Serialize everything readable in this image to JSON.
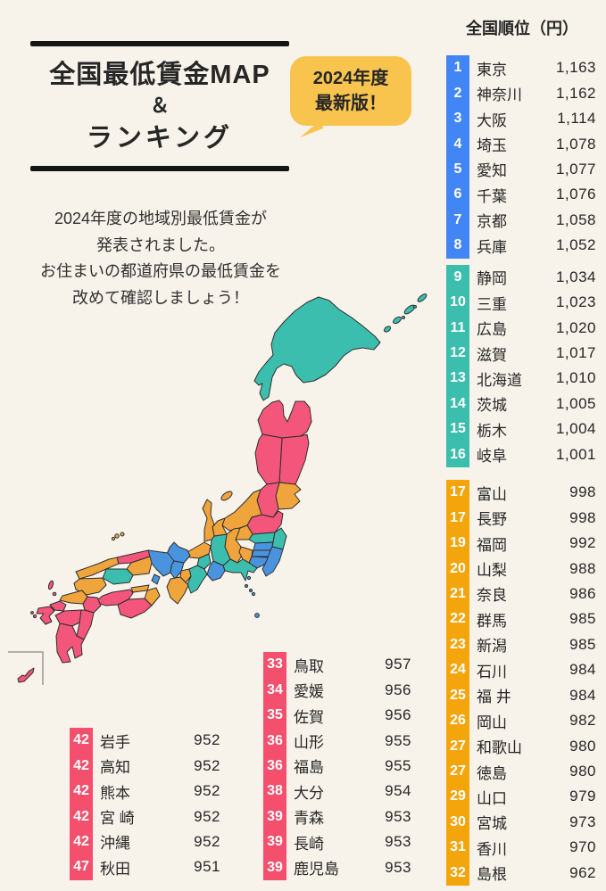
{
  "header": {
    "title_lines": [
      "全国最低賃金MAP",
      "＆",
      "ランキング"
    ],
    "badge": {
      "line1": "2024年度",
      "line2": "最新版！",
      "bg": "#F8C44E"
    },
    "description_lines": [
      "2024年度の地域別最低賃金が",
      "発表されました。",
      "お住まいの都道府県の最低賃金を",
      "改めて確認しましょう！"
    ]
  },
  "ranking": {
    "header": "全国順位（円）",
    "groups": [
      {
        "color": "#4285F4",
        "items": [
          {
            "rank": "1",
            "name": "東京",
            "value": "1,163"
          },
          {
            "rank": "2",
            "name": "神奈川",
            "value": "1,162"
          },
          {
            "rank": "3",
            "name": "大阪",
            "value": "1,114"
          },
          {
            "rank": "4",
            "name": "埼玉",
            "value": "1,078"
          },
          {
            "rank": "5",
            "name": "愛知",
            "value": "1,077"
          },
          {
            "rank": "6",
            "name": "千葉",
            "value": "1,076"
          },
          {
            "rank": "7",
            "name": "京都",
            "value": "1,058"
          },
          {
            "rank": "8",
            "name": "兵庫",
            "value": "1,052"
          }
        ]
      },
      {
        "color": "#3BBEAE",
        "items": [
          {
            "rank": "9",
            "name": "静岡",
            "value": "1,034"
          },
          {
            "rank": "10",
            "name": "三重",
            "value": "1,023"
          },
          {
            "rank": "11",
            "name": "広島",
            "value": "1,020"
          },
          {
            "rank": "12",
            "name": "滋賀",
            "value": "1,017"
          },
          {
            "rank": "13",
            "name": "北海道",
            "value": "1,010"
          },
          {
            "rank": "14",
            "name": "茨城",
            "value": "1,005"
          },
          {
            "rank": "15",
            "name": "栃木",
            "value": "1,004"
          },
          {
            "rank": "16",
            "name": "岐阜",
            "value": "1,001"
          }
        ]
      },
      {
        "color": "#F4A50B",
        "items": [
          {
            "rank": "17",
            "name": "富山",
            "value": "998"
          },
          {
            "rank": "17",
            "name": "長野",
            "value": "998"
          },
          {
            "rank": "19",
            "name": "福岡",
            "value": "992"
          },
          {
            "rank": "20",
            "name": "山梨",
            "value": "988"
          },
          {
            "rank": "21",
            "name": "奈良",
            "value": "986"
          },
          {
            "rank": "22",
            "name": "群馬",
            "value": "985"
          },
          {
            "rank": "23",
            "name": "新潟",
            "value": "985"
          },
          {
            "rank": "24",
            "name": "石川",
            "value": "984"
          },
          {
            "rank": "25",
            "name": "福 井",
            "value": "984"
          },
          {
            "rank": "26",
            "name": "岡山",
            "value": "982"
          },
          {
            "rank": "27",
            "name": "和歌山",
            "value": "980"
          },
          {
            "rank": "27",
            "name": "徳島",
            "value": "980"
          },
          {
            "rank": "29",
            "name": "山口",
            "value": "979"
          },
          {
            "rank": "30",
            "name": "宮城",
            "value": "973"
          },
          {
            "rank": "31",
            "name": "香川",
            "value": "970"
          },
          {
            "rank": "32",
            "name": "島根",
            "value": "962"
          }
        ]
      }
    ]
  },
  "sub_rankings": {
    "middle": {
      "color": "#F4506E",
      "items": [
        {
          "rank": "33",
          "name": "鳥取",
          "value": "957"
        },
        {
          "rank": "34",
          "name": "愛媛",
          "value": "956"
        },
        {
          "rank": "35",
          "name": "佐賀",
          "value": "956"
        },
        {
          "rank": "36",
          "name": "山形",
          "value": "955"
        },
        {
          "rank": "36",
          "name": "福島",
          "value": "955"
        },
        {
          "rank": "38",
          "name": "大分",
          "value": "954"
        },
        {
          "rank": "39",
          "name": "青森",
          "value": "953"
        },
        {
          "rank": "39",
          "name": "長崎",
          "value": "953"
        },
        {
          "rank": "39",
          "name": "鹿児島",
          "value": "953"
        }
      ]
    },
    "bottom_left": {
      "color": "#F4506E",
      "items": [
        {
          "rank": "42",
          "name": "岩手",
          "value": "952"
        },
        {
          "rank": "42",
          "name": "高知",
          "value": "952"
        },
        {
          "rank": "42",
          "name": "熊本",
          "value": "952"
        },
        {
          "rank": "42",
          "name": "宮 崎",
          "value": "952"
        },
        {
          "rank": "42",
          "name": "沖縄",
          "value": "952"
        },
        {
          "rank": "47",
          "name": "秋田",
          "value": "951"
        }
      ]
    }
  },
  "map": {
    "colors": {
      "blue": "#4A94DF",
      "teal": "#3BBEAE",
      "orange": "#F0A43C",
      "pink": "#F3557B"
    },
    "tiers": {
      "hokkaido": "teal",
      "kuril-1": "teal",
      "kuril-2": "teal",
      "kuril-3": "teal",
      "kuril-4": "teal",
      "kuril-5": "teal",
      "kuril-6": "teal",
      "aomori": "pink",
      "iwate": "pink",
      "akita": "pink",
      "miyagi": "orange",
      "yamagata": "pink",
      "fukushima": "pink",
      "niigata": "orange",
      "sado": "orange",
      "gunma": "orange",
      "tochigi": "teal",
      "ibaraki": "teal",
      "saitama": "blue",
      "tokyo": "blue",
      "kanagawa": "blue",
      "chiba": "blue",
      "izu-1": "blue",
      "izu-2": "blue",
      "izu-3": "blue",
      "izu-4": "blue",
      "izu-5": "blue",
      "nagano": "orange",
      "yamanashi": "orange",
      "shizuoka": "teal",
      "aichi": "blue",
      "gifu": "teal",
      "toyama": "orange",
      "ishikawa": "orange",
      "fukui": "orange",
      "shiga": "teal",
      "kyoto": "blue",
      "osaka": "blue",
      "hyogo": "blue",
      "awaji": "blue",
      "nara": "orange",
      "mie": "teal",
      "wakayama": "orange",
      "tottori": "pink",
      "okayama": "orange",
      "shimane": "orange",
      "oki-1": "orange",
      "oki-2": "orange",
      "oki-3": "orange",
      "hiroshima": "teal",
      "yamaguchi": "orange",
      "kagawa": "orange",
      "tokushima": "orange",
      "ehime": "pink",
      "kochi": "pink",
      "fukuoka": "orange",
      "oita": "pink",
      "saga": "pink",
      "nagasaki": "pink",
      "tsushima": "pink",
      "iki": "pink",
      "goto-1": "pink",
      "goto-2": "pink",
      "kumamoto": "pink",
      "miyazaki": "pink",
      "kagoshima": "pink",
      "okinawa": "pink"
    }
  }
}
